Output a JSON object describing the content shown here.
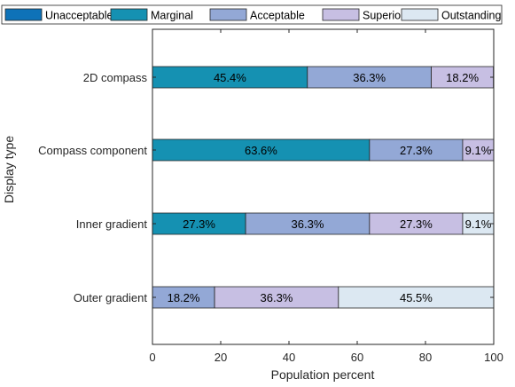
{
  "chart_data": {
    "type": "bar",
    "orientation": "horizontal",
    "stacked": true,
    "title": "",
    "xlabel": "Population percent",
    "ylabel": "Display type",
    "xlim": [
      0,
      100
    ],
    "xticks": [
      0,
      20,
      40,
      60,
      80,
      100
    ],
    "grid": false,
    "legend_position": "top",
    "categories": [
      "2D compass",
      "Compass component",
      "Inner gradient",
      "Outer gradient"
    ],
    "series": [
      {
        "name": "Unacceptable",
        "color": "#0e72b8",
        "values": [
          0,
          0,
          0,
          0
        ],
        "labels": [
          "",
          "",
          "",
          ""
        ]
      },
      {
        "name": "Marginal",
        "color": "#1591b2",
        "values": [
          45.4,
          63.6,
          27.3,
          0
        ],
        "labels": [
          "45.4%",
          "63.6%",
          "27.3%",
          ""
        ]
      },
      {
        "name": "Acceptable",
        "color": "#93a8d6",
        "values": [
          36.3,
          27.3,
          36.3,
          18.2
        ],
        "labels": [
          "36.3%",
          "27.3%",
          "36.3%",
          "18.2%"
        ]
      },
      {
        "name": "Superior",
        "color": "#c7bfe3",
        "values": [
          18.2,
          9.1,
          27.3,
          36.3
        ],
        "labels": [
          "18.2%",
          "9.1%",
          "27.3%",
          "36.3%"
        ]
      },
      {
        "name": "Outstanding",
        "color": "#dce8f2",
        "values": [
          0,
          0,
          9.1,
          45.5
        ],
        "labels": [
          "",
          "",
          "9.1%",
          "45.5%"
        ]
      }
    ]
  }
}
